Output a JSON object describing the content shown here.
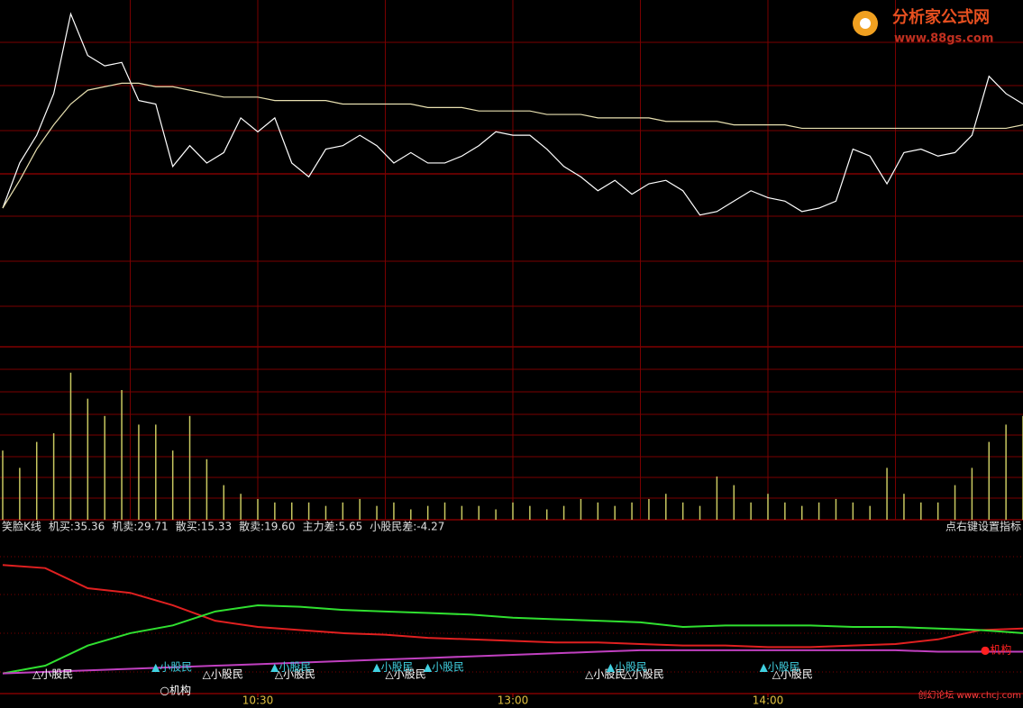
{
  "logo": {
    "title": "分析家公式网",
    "url": "www.88gs.com"
  },
  "watermark": "创幻论坛 www.chcj.com",
  "chart_data": [
    {
      "type": "line",
      "x": [
        0,
        4,
        8,
        12,
        16,
        20,
        24,
        28,
        32,
        36,
        40,
        44,
        48,
        52,
        56,
        60,
        64,
        68,
        72,
        76,
        80,
        84,
        88,
        92,
        96,
        100,
        104,
        108,
        112,
        116,
        120,
        124,
        128,
        132,
        136,
        140,
        144,
        148,
        152,
        156,
        160,
        164,
        168,
        172,
        176,
        180,
        184,
        188,
        192,
        196,
        200,
        204,
        208,
        212,
        216,
        220,
        224,
        228,
        232,
        236,
        240
      ],
      "xlim": [
        0,
        240
      ],
      "ylim": [
        0,
        100
      ],
      "series": [
        {
          "color": "#ffffff",
          "values": [
            40,
            53,
            61,
            73,
            96,
            84,
            81,
            82,
            71,
            70,
            52,
            58,
            53,
            56,
            66,
            62,
            66,
            53,
            49,
            57,
            58,
            61,
            58,
            53,
            56,
            53,
            53,
            55,
            58,
            62,
            61,
            61,
            57,
            52,
            49,
            45,
            48,
            44,
            47,
            48,
            45,
            38,
            39,
            42,
            45,
            43,
            42,
            39,
            40,
            42,
            57,
            55,
            47,
            56,
            57,
            55,
            56,
            61,
            78,
            73,
            70
          ]
        },
        {
          "color": "#e8e0b0",
          "values": [
            40,
            48,
            57,
            64,
            70,
            74,
            75,
            76,
            76,
            75,
            75,
            74,
            73,
            72,
            72,
            72,
            71,
            71,
            71,
            71,
            70,
            70,
            70,
            70,
            70,
            69,
            69,
            69,
            68,
            68,
            68,
            68,
            67,
            67,
            67,
            66,
            66,
            66,
            66,
            65,
            65,
            65,
            65,
            64,
            64,
            64,
            64,
            63,
            63,
            63,
            63,
            63,
            63,
            63,
            63,
            63,
            63,
            63,
            63,
            63,
            64
          ]
        }
      ]
    },
    {
      "type": "bar",
      "x": [
        0,
        4,
        8,
        12,
        16,
        20,
        24,
        28,
        32,
        36,
        40,
        44,
        48,
        52,
        56,
        60,
        64,
        68,
        72,
        76,
        80,
        84,
        88,
        92,
        96,
        100,
        104,
        108,
        112,
        116,
        120,
        124,
        128,
        132,
        136,
        140,
        144,
        148,
        152,
        156,
        160,
        164,
        168,
        172,
        176,
        180,
        184,
        188,
        192,
        196,
        200,
        204,
        208,
        212,
        216,
        220,
        224,
        228,
        232,
        236,
        240
      ],
      "xlim": [
        0,
        240
      ],
      "ylim": [
        0,
        100
      ],
      "color": "#c8c860",
      "values": [
        40,
        30,
        45,
        50,
        85,
        70,
        60,
        75,
        55,
        55,
        40,
        60,
        35,
        20,
        15,
        12,
        10,
        10,
        10,
        8,
        10,
        12,
        8,
        10,
        6,
        8,
        10,
        8,
        8,
        6,
        10,
        8,
        6,
        8,
        12,
        10,
        8,
        10,
        12,
        15,
        10,
        8,
        25,
        20,
        10,
        15,
        10,
        8,
        10,
        12,
        10,
        8,
        30,
        15,
        10,
        10,
        20,
        30,
        45,
        55,
        60
      ]
    },
    {
      "type": "line",
      "title": "笑脸K线",
      "legend": [
        "机买:35.36",
        "机卖:29.71",
        "散买:15.33",
        "散卖:19.60",
        "主力差:5.65",
        "小股民差:-4.27"
      ],
      "note": "点右键设置指标",
      "x": [
        0,
        10,
        20,
        30,
        40,
        50,
        60,
        70,
        80,
        90,
        100,
        110,
        120,
        130,
        140,
        150,
        160,
        170,
        180,
        190,
        200,
        210,
        220,
        230,
        240
      ],
      "xlim": [
        0,
        240
      ],
      "ylim": [
        0,
        100
      ],
      "xticks": [
        {
          "value": 60,
          "label": "10:30"
        },
        {
          "value": 120,
          "label": "13:00"
        },
        {
          "value": 180,
          "label": "14:00"
        }
      ],
      "series": [
        {
          "color": "#e02020",
          "values": [
            83,
            81,
            68,
            65,
            57,
            47,
            43,
            41,
            39,
            38,
            36,
            35,
            34,
            33,
            33,
            32,
            31,
            31,
            30,
            30,
            31,
            32,
            35,
            41,
            42
          ]
        },
        {
          "color": "#30e030",
          "values": [
            13,
            18,
            31,
            39,
            44,
            53,
            57,
            56,
            54,
            53,
            52,
            51,
            49,
            48,
            47,
            46,
            43,
            44,
            44,
            44,
            43,
            43,
            42,
            41,
            39
          ]
        },
        {
          "color": "#c040c0",
          "values": [
            13,
            14,
            15,
            16,
            17,
            18,
            19,
            20,
            21,
            22,
            23,
            24,
            25,
            26,
            27,
            28,
            28,
            28,
            28,
            28,
            28,
            28,
            27,
            27,
            27
          ]
        }
      ],
      "annotations": [
        {
          "text": "△小股民",
          "x": 7,
          "color": "#ffffff"
        },
        {
          "text": "△小股民",
          "x": 47,
          "color": "#ffffff"
        },
        {
          "text": "△小股民",
          "x": 64,
          "color": "#ffffff"
        },
        {
          "text": "△小股民",
          "x": 90,
          "color": "#ffffff"
        },
        {
          "text": "△小股民",
          "x": 137,
          "color": "#ffffff"
        },
        {
          "text": "△小股民",
          "x": 146,
          "color": "#ffffff"
        },
        {
          "text": "△小股民",
          "x": 181,
          "color": "#ffffff"
        },
        {
          "text": "▲小股民",
          "x": 35,
          "color": "#40d0e0"
        },
        {
          "text": "▲小股民",
          "x": 63,
          "color": "#40d0e0"
        },
        {
          "text": "▲小股民",
          "x": 87,
          "color": "#40d0e0"
        },
        {
          "text": "▲小股民",
          "x": 99,
          "color": "#40d0e0"
        },
        {
          "text": "▲小股民",
          "x": 142,
          "color": "#40d0e0"
        },
        {
          "text": "▲小股民",
          "x": 178,
          "color": "#40d0e0"
        },
        {
          "text": "○机构",
          "x": 37,
          "color": "#ffffff"
        },
        {
          "text": "●机构",
          "x": 230,
          "color": "#ff2020"
        }
      ]
    }
  ]
}
